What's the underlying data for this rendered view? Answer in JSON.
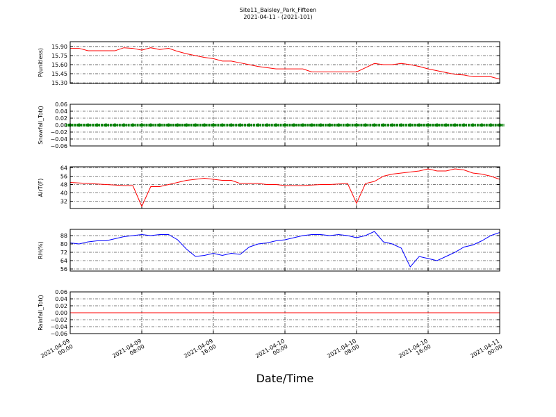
{
  "chart_data": [
    {
      "type": "line",
      "title": "Site11_Baisley_Park_Fifteen",
      "subtitle": "2021-04-11 - (2021-101)",
      "ylabel": "P(unitless)",
      "color": "#ff0000",
      "x": [
        "2021-04-09 00:00",
        "2021-04-09 01:00",
        "2021-04-09 02:00",
        "2021-04-09 03:00",
        "2021-04-09 04:00",
        "2021-04-09 05:00",
        "2021-04-09 06:00",
        "2021-04-09 07:00",
        "2021-04-09 08:00",
        "2021-04-09 09:00",
        "2021-04-09 10:00",
        "2021-04-09 11:00",
        "2021-04-09 12:00",
        "2021-04-09 13:00",
        "2021-04-09 14:00",
        "2021-04-09 15:00",
        "2021-04-09 16:00",
        "2021-04-09 17:00",
        "2021-04-09 18:00",
        "2021-04-09 19:00",
        "2021-04-09 20:00",
        "2021-04-09 21:00",
        "2021-04-09 22:00",
        "2021-04-09 23:00",
        "2021-04-10 00:00",
        "2021-04-10 01:00",
        "2021-04-10 02:00",
        "2021-04-10 03:00",
        "2021-04-10 04:00",
        "2021-04-10 05:00",
        "2021-04-10 06:00",
        "2021-04-10 07:00",
        "2021-04-10 08:00",
        "2021-04-10 09:00",
        "2021-04-10 10:00",
        "2021-04-10 11:00",
        "2021-04-10 12:00",
        "2021-04-10 13:00",
        "2021-04-10 14:00",
        "2021-04-10 15:00",
        "2021-04-10 16:00",
        "2021-04-10 17:00",
        "2021-04-10 18:00",
        "2021-04-10 19:00",
        "2021-04-10 20:00",
        "2021-04-10 21:00",
        "2021-04-10 22:00",
        "2021-04-10 23:00",
        "2021-04-11 00:00"
      ],
      "values": [
        15.87,
        15.87,
        15.83,
        15.83,
        15.83,
        15.83,
        15.88,
        15.87,
        15.84,
        15.88,
        15.85,
        15.87,
        15.82,
        15.78,
        15.75,
        15.72,
        15.7,
        15.66,
        15.66,
        15.63,
        15.6,
        15.57,
        15.55,
        15.53,
        15.53,
        15.53,
        15.53,
        15.48,
        15.48,
        15.48,
        15.48,
        15.48,
        15.48,
        15.55,
        15.62,
        15.6,
        15.6,
        15.62,
        15.6,
        15.57,
        15.53,
        15.5,
        15.47,
        15.44,
        15.43,
        15.4,
        15.4,
        15.4,
        15.36
      ],
      "xlim": [
        "2021-04-09 00:00",
        "2021-04-11 00:00"
      ],
      "xticks": [
        "2021-04-09 00:00",
        "2021-04-09 08:00",
        "2021-04-09 16:00",
        "2021-04-10 00:00",
        "2021-04-10 08:00",
        "2021-04-10 16:00",
        "2021-04-11 00:00"
      ],
      "ylim": [
        15.29,
        15.98
      ],
      "yticks": [
        {
          "value": 15.3,
          "label": "15.30"
        },
        15.45,
        {
          "value": 15.6,
          "label": "15.60"
        },
        15.75,
        {
          "value": 15.9,
          "label": "15.90"
        }
      ],
      "grid": true
    },
    {
      "type": "scatter",
      "ylabel": "Snowfall_Tot()",
      "color": "#008000",
      "x": [
        "2021-04-09 00:00",
        "2021-04-09 01:00",
        "2021-04-09 02:00",
        "2021-04-09 03:00",
        "2021-04-09 04:00",
        "2021-04-09 05:00",
        "2021-04-09 06:00",
        "2021-04-09 07:00",
        "2021-04-09 08:00",
        "2021-04-09 09:00",
        "2021-04-09 10:00",
        "2021-04-09 11:00",
        "2021-04-09 12:00",
        "2021-04-09 13:00",
        "2021-04-09 14:00",
        "2021-04-09 15:00",
        "2021-04-09 16:00",
        "2021-04-09 17:00",
        "2021-04-09 18:00",
        "2021-04-09 19:00",
        "2021-04-09 20:00",
        "2021-04-09 21:00",
        "2021-04-09 22:00",
        "2021-04-09 23:00",
        "2021-04-10 00:00",
        "2021-04-10 01:00",
        "2021-04-10 02:00",
        "2021-04-10 03:00",
        "2021-04-10 04:00",
        "2021-04-10 05:00",
        "2021-04-10 06:00",
        "2021-04-10 07:00",
        "2021-04-10 08:00",
        "2021-04-10 09:00",
        "2021-04-10 10:00",
        "2021-04-10 11:00",
        "2021-04-10 12:00",
        "2021-04-10 13:00",
        "2021-04-10 14:00",
        "2021-04-10 15:00",
        "2021-04-10 16:00",
        "2021-04-10 17:00",
        "2021-04-10 18:00",
        "2021-04-10 19:00",
        "2021-04-10 20:00",
        "2021-04-10 21:00",
        "2021-04-10 22:00",
        "2021-04-10 23:00",
        "2021-04-11 00:00"
      ],
      "values": [
        0,
        0,
        0,
        0,
        0,
        0,
        0,
        0,
        0,
        0,
        0,
        0,
        0,
        0,
        0,
        0,
        0,
        0,
        0,
        0,
        0,
        0,
        0,
        0,
        0,
        0,
        0,
        0,
        0,
        0,
        0,
        0,
        0,
        0,
        0,
        0,
        0,
        0,
        0,
        0,
        0,
        0,
        0,
        0,
        0,
        0,
        0,
        0,
        0
      ],
      "xlim": [
        "2021-04-09 00:00",
        "2021-04-11 00:00"
      ],
      "xticks": [
        "2021-04-09 00:00",
        "2021-04-09 08:00",
        "2021-04-09 16:00",
        "2021-04-10 00:00",
        "2021-04-10 08:00",
        "2021-04-10 16:00",
        "2021-04-11 00:00"
      ],
      "ylim": [
        -0.06,
        0.06
      ],
      "yticks": [
        {
          "value": -0.06,
          "label": "−0.06"
        },
        {
          "value": -0.04,
          "label": "−0.04"
        },
        {
          "value": -0.02,
          "label": "−0.02"
        },
        {
          "value": 0,
          "label": "0.00"
        },
        0.02,
        0.04,
        0.06
      ],
      "grid": true
    },
    {
      "type": "line",
      "ylabel": "AirT(F)",
      "color": "#ff0000",
      "x": [
        "2021-04-09 00:00",
        "2021-04-09 01:00",
        "2021-04-09 02:00",
        "2021-04-09 03:00",
        "2021-04-09 04:00",
        "2021-04-09 05:00",
        "2021-04-09 06:00",
        "2021-04-09 07:00",
        "2021-04-09 08:00",
        "2021-04-09 09:00",
        "2021-04-09 10:00",
        "2021-04-09 11:00",
        "2021-04-09 12:00",
        "2021-04-09 13:00",
        "2021-04-09 14:00",
        "2021-04-09 15:00",
        "2021-04-09 16:00",
        "2021-04-09 17:00",
        "2021-04-09 18:00",
        "2021-04-09 19:00",
        "2021-04-09 20:00",
        "2021-04-09 21:00",
        "2021-04-09 22:00",
        "2021-04-09 23:00",
        "2021-04-10 00:00",
        "2021-04-10 01:00",
        "2021-04-10 02:00",
        "2021-04-10 03:00",
        "2021-04-10 04:00",
        "2021-04-10 05:00",
        "2021-04-10 06:00",
        "2021-04-10 07:00",
        "2021-04-10 08:00",
        "2021-04-10 09:00",
        "2021-04-10 10:00",
        "2021-04-10 11:00",
        "2021-04-10 12:00",
        "2021-04-10 13:00",
        "2021-04-10 14:00",
        "2021-04-10 15:00",
        "2021-04-10 16:00",
        "2021-04-10 17:00",
        "2021-04-10 18:00",
        "2021-04-10 19:00",
        "2021-04-10 20:00",
        "2021-04-10 21:00",
        "2021-04-10 22:00",
        "2021-04-10 23:00",
        "2021-04-11 00:00"
      ],
      "values": [
        50,
        49.5,
        49,
        48.5,
        48,
        47.5,
        47,
        47,
        27,
        46,
        46,
        48,
        50,
        52,
        53,
        54,
        53,
        52,
        52,
        49,
        49,
        49,
        48,
        48,
        47,
        47,
        47,
        47.5,
        48,
        48,
        48.5,
        49,
        30,
        49,
        51,
        56,
        58,
        59,
        60,
        61,
        63,
        61,
        61,
        63,
        62,
        59,
        58,
        56,
        53
      ],
      "xlim": [
        "2021-04-09 00:00",
        "2021-04-11 00:00"
      ],
      "xticks": [
        "2021-04-09 00:00",
        "2021-04-09 08:00",
        "2021-04-09 16:00",
        "2021-04-10 00:00",
        "2021-04-10 08:00",
        "2021-04-10 16:00",
        "2021-04-11 00:00"
      ],
      "ylim": [
        25,
        65
      ],
      "yticks": [
        32,
        40,
        48,
        56,
        64
      ],
      "grid": true
    },
    {
      "type": "line",
      "ylabel": "RH(%)",
      "color": "#0000ff",
      "x": [
        "2021-04-09 00:00",
        "2021-04-09 01:00",
        "2021-04-09 02:00",
        "2021-04-09 03:00",
        "2021-04-09 04:00",
        "2021-04-09 05:00",
        "2021-04-09 06:00",
        "2021-04-09 07:00",
        "2021-04-09 08:00",
        "2021-04-09 09:00",
        "2021-04-09 10:00",
        "2021-04-09 11:00",
        "2021-04-09 12:00",
        "2021-04-09 13:00",
        "2021-04-09 14:00",
        "2021-04-09 15:00",
        "2021-04-09 16:00",
        "2021-04-09 17:00",
        "2021-04-09 18:00",
        "2021-04-09 19:00",
        "2021-04-09 20:00",
        "2021-04-09 21:00",
        "2021-04-09 22:00",
        "2021-04-09 23:00",
        "2021-04-10 00:00",
        "2021-04-10 01:00",
        "2021-04-10 02:00",
        "2021-04-10 03:00",
        "2021-04-10 04:00",
        "2021-04-10 05:00",
        "2021-04-10 06:00",
        "2021-04-10 07:00",
        "2021-04-10 08:00",
        "2021-04-10 09:00",
        "2021-04-10 10:00",
        "2021-04-10 11:00",
        "2021-04-10 12:00",
        "2021-04-10 13:00",
        "2021-04-10 14:00",
        "2021-04-10 15:00",
        "2021-04-10 16:00",
        "2021-04-10 17:00",
        "2021-04-10 18:00",
        "2021-04-10 19:00",
        "2021-04-10 20:00",
        "2021-04-10 21:00",
        "2021-04-10 22:00",
        "2021-04-10 23:00",
        "2021-04-11 00:00"
      ],
      "values": [
        81,
        80,
        82,
        83,
        83,
        85,
        87,
        88,
        89,
        88,
        89,
        89,
        84,
        75,
        68,
        69,
        71,
        69,
        71,
        70,
        77,
        80,
        81,
        83,
        84,
        86,
        88,
        89,
        89,
        88,
        89,
        88,
        86,
        88,
        92,
        82,
        80,
        76,
        58,
        68,
        66,
        64,
        68,
        72,
        77,
        79,
        83,
        88,
        91
      ],
      "xlim": [
        "2021-04-09 00:00",
        "2021-04-11 00:00"
      ],
      "xticks": [
        "2021-04-09 00:00",
        "2021-04-09 08:00",
        "2021-04-09 16:00",
        "2021-04-10 00:00",
        "2021-04-10 08:00",
        "2021-04-10 16:00",
        "2021-04-11 00:00"
      ],
      "ylim": [
        54,
        94
      ],
      "yticks": [
        56,
        64,
        72,
        80,
        88
      ],
      "grid": true
    },
    {
      "type": "line",
      "ylabel": "Rainfall_Tot()",
      "xlabel": "Date/Time",
      "color": "#ff0000",
      "x": [
        "2021-04-09 00:00",
        "2021-04-09 01:00",
        "2021-04-09 02:00",
        "2021-04-09 03:00",
        "2021-04-09 04:00",
        "2021-04-09 05:00",
        "2021-04-09 06:00",
        "2021-04-09 07:00",
        "2021-04-09 08:00",
        "2021-04-09 09:00",
        "2021-04-09 10:00",
        "2021-04-09 11:00",
        "2021-04-09 12:00",
        "2021-04-09 13:00",
        "2021-04-09 14:00",
        "2021-04-09 15:00",
        "2021-04-09 16:00",
        "2021-04-09 17:00",
        "2021-04-09 18:00",
        "2021-04-09 19:00",
        "2021-04-09 20:00",
        "2021-04-09 21:00",
        "2021-04-09 22:00",
        "2021-04-09 23:00",
        "2021-04-10 00:00",
        "2021-04-10 01:00",
        "2021-04-10 02:00",
        "2021-04-10 03:00",
        "2021-04-10 04:00",
        "2021-04-10 05:00",
        "2021-04-10 06:00",
        "2021-04-10 07:00",
        "2021-04-10 08:00",
        "2021-04-10 09:00",
        "2021-04-10 10:00",
        "2021-04-10 11:00",
        "2021-04-10 12:00",
        "2021-04-10 13:00",
        "2021-04-10 14:00",
        "2021-04-10 15:00",
        "2021-04-10 16:00",
        "2021-04-10 17:00",
        "2021-04-10 18:00",
        "2021-04-10 19:00",
        "2021-04-10 20:00",
        "2021-04-10 21:00",
        "2021-04-10 22:00",
        "2021-04-10 23:00",
        "2021-04-11 00:00"
      ],
      "values": [
        0,
        0,
        0,
        0,
        0,
        0,
        0,
        0,
        0,
        0,
        0,
        0,
        0,
        0,
        0,
        0,
        0,
        0,
        0,
        0,
        0,
        0,
        0,
        0,
        0,
        0,
        0,
        0,
        0,
        0,
        0,
        0,
        0,
        0,
        0,
        0,
        0,
        0,
        0,
        0,
        0,
        0,
        0,
        0,
        0,
        0,
        0,
        0,
        0
      ],
      "xlim": [
        "2021-04-09 00:00",
        "2021-04-11 00:00"
      ],
      "xticks": [
        "2021-04-09 00:00",
        "2021-04-09 08:00",
        "2021-04-09 16:00",
        "2021-04-10 00:00",
        "2021-04-10 08:00",
        "2021-04-10 16:00",
        "2021-04-11 00:00"
      ],
      "ylim": [
        -0.06,
        0.06
      ],
      "yticks": [
        {
          "value": -0.06,
          "label": "−0.06"
        },
        {
          "value": -0.04,
          "label": "−0.04"
        },
        {
          "value": -0.02,
          "label": "−0.02"
        },
        {
          "value": 0,
          "label": "0.00"
        },
        0.02,
        0.04,
        0.06
      ],
      "grid": true,
      "show_xtick_labels": true
    }
  ]
}
